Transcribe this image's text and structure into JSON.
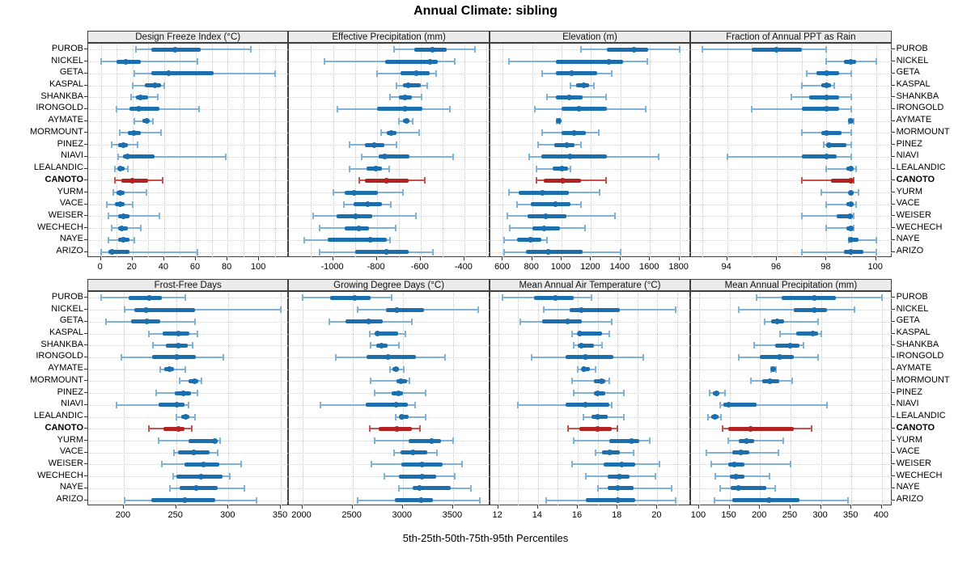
{
  "title": "Annual Climate: sibling",
  "caption": "5th-25th-50th-75th-95th Percentiles",
  "colors": {
    "series": "#1B6FAE",
    "series_light": "#7FB2D6",
    "highlight": "#B22222",
    "highlight_light": "#C9524B",
    "grid": "#c9c9c9",
    "strip_bg": "#ebebeb",
    "border": "#3f3f3f"
  },
  "highlight_site": "CANOTO",
  "sites": [
    "PUROB",
    "NICKEL",
    "GETA",
    "KASPAL",
    "SHANKBA",
    "IRONGOLD",
    "AYMATE",
    "MORMOUNT",
    "PINEZ",
    "NIAVI",
    "LEALANDIC",
    "CANOTO",
    "YURM",
    "VACE",
    "WEISER",
    "WECHECH",
    "NAYE",
    "ARIZO"
  ],
  "percentile_levels": [
    5,
    25,
    50,
    75,
    95
  ],
  "chart_data": [
    {
      "type": "dotplot-percentiles",
      "title": "Design Freeze Index (°C)",
      "row": 0,
      "col": 0,
      "xlim": [
        -8,
        119
      ],
      "ticks": [
        0,
        20,
        40,
        60,
        80,
        100
      ],
      "grid": [
        0,
        10,
        20,
        30,
        40,
        50,
        60,
        70,
        80,
        90,
        100,
        110
      ],
      "values": [
        [
          22,
          32,
          47,
          63,
          95
        ],
        [
          0,
          10,
          16,
          25,
          61
        ],
        [
          21,
          32,
          43,
          71,
          110
        ],
        [
          20,
          28,
          34,
          38,
          40
        ],
        [
          19,
          22,
          25,
          30,
          36
        ],
        [
          10,
          18,
          24,
          37,
          62
        ],
        [
          21,
          26,
          29,
          31,
          33
        ],
        [
          12,
          17,
          21,
          25,
          38
        ],
        [
          7,
          11,
          14,
          17,
          23
        ],
        [
          11,
          14,
          17,
          34,
          79
        ],
        [
          9,
          11,
          12,
          15,
          17
        ],
        [
          9,
          13,
          20,
          30,
          39
        ],
        [
          8,
          10,
          12,
          15,
          29
        ],
        [
          4,
          9,
          12,
          15,
          20
        ],
        [
          5,
          11,
          14,
          18,
          37
        ],
        [
          7,
          11,
          13,
          17,
          25
        ],
        [
          5,
          11,
          14,
          18,
          21
        ],
        [
          0,
          5,
          7,
          18,
          61
        ]
      ]
    },
    {
      "type": "dotplot-percentiles",
      "title": "Effective Precipitation (mm)",
      "row": 0,
      "col": 1,
      "xlim": [
        -1200,
        -282
      ],
      "ticks": [
        -1000,
        -800,
        -600,
        -400
      ],
      "grid": [
        -1100,
        -1000,
        -900,
        -800,
        -700,
        -600,
        -500,
        -400,
        -300
      ],
      "values": [
        [
          -720,
          -630,
          -545,
          -480,
          -350
        ],
        [
          -1040,
          -760,
          -555,
          -520,
          -445
        ],
        [
          -800,
          -690,
          -620,
          -560,
          -530
        ],
        [
          -710,
          -680,
          -655,
          -600,
          -570
        ],
        [
          -740,
          -700,
          -670,
          -640,
          -595
        ],
        [
          -980,
          -800,
          -670,
          -590,
          -465
        ],
        [
          -700,
          -680,
          -665,
          -650,
          -635
        ],
        [
          -780,
          -755,
          -735,
          -710,
          -605
        ],
        [
          -925,
          -855,
          -810,
          -765,
          -710
        ],
        [
          -870,
          -790,
          -765,
          -650,
          -450
        ],
        [
          -925,
          -845,
          -805,
          -775,
          -745
        ],
        [
          -880,
          -855,
          -755,
          -655,
          -580
        ],
        [
          -1000,
          -945,
          -905,
          -795,
          -680
        ],
        [
          -950,
          -905,
          -840,
          -775,
          -735
        ],
        [
          -1090,
          -985,
          -895,
          -820,
          -620
        ],
        [
          -1060,
          -945,
          -880,
          -835,
          -715
        ],
        [
          -1130,
          -1025,
          -830,
          -755,
          -740
        ],
        [
          -1060,
          -900,
          -755,
          -655,
          -545
        ]
      ]
    },
    {
      "type": "dotplot-percentiles",
      "title": "Elevation (m)",
      "row": 0,
      "col": 2,
      "xlim": [
        515,
        1880
      ],
      "ticks": [
        600,
        800,
        1000,
        1200,
        1400,
        1600,
        1800
      ],
      "grid": [
        600,
        800,
        1000,
        1200,
        1400,
        1600,
        1800
      ],
      "values": [
        [
          1130,
          1310,
          1490,
          1590,
          1800
        ],
        [
          640,
          960,
          1320,
          1420,
          1580
        ],
        [
          870,
          960,
          1070,
          1240,
          1340
        ],
        [
          1060,
          1100,
          1150,
          1185,
          1220
        ],
        [
          900,
          960,
          1050,
          1140,
          1300
        ],
        [
          820,
          1000,
          1120,
          1310,
          1570
        ],
        [
          965,
          975,
          980,
          985,
          990
        ],
        [
          870,
          1000,
          1085,
          1165,
          1250
        ],
        [
          840,
          950,
          1035,
          1090,
          1130
        ],
        [
          780,
          860,
          1060,
          1310,
          1660
        ],
        [
          830,
          940,
          1000,
          1045,
          1060
        ],
        [
          830,
          880,
          1010,
          1130,
          1300
        ],
        [
          640,
          710,
          870,
          1050,
          1260
        ],
        [
          700,
          790,
          960,
          1060,
          1130
        ],
        [
          630,
          770,
          890,
          1030,
          1360
        ],
        [
          650,
          800,
          880,
          990,
          1160
        ],
        [
          610,
          700,
          790,
          860,
          900
        ],
        [
          610,
          760,
          910,
          1140,
          1400
        ]
      ]
    },
    {
      "type": "dotplot-percentiles",
      "title": "Fraction of Annual PPT as Rain",
      "row": 0,
      "col": 3,
      "xlim": [
        92.55,
        100.65
      ],
      "ticks": [
        94,
        96,
        98,
        100
      ],
      "grid": [
        93,
        94,
        95,
        96,
        97,
        98,
        99,
        100
      ],
      "values": [
        [
          93,
          95,
          96,
          97,
          98
        ],
        [
          98,
          98.7,
          99,
          99.2,
          100
        ],
        [
          97.2,
          97.6,
          98,
          98.5,
          99
        ],
        [
          97,
          97.8,
          98,
          98.2,
          98.3
        ],
        [
          96.6,
          97.3,
          98,
          98.5,
          99
        ],
        [
          95,
          97,
          98,
          98.5,
          99
        ],
        [
          98.9,
          98.95,
          99,
          99.05,
          99.1
        ],
        [
          97,
          97.8,
          98,
          98.6,
          99
        ],
        [
          97.9,
          98,
          98.1,
          98.8,
          99
        ],
        [
          94,
          97,
          98,
          98.4,
          99
        ],
        [
          98,
          98.8,
          99,
          99.1,
          99.2
        ],
        [
          97,
          98.2,
          99,
          99.05,
          99.1
        ],
        [
          97.8,
          98.9,
          99,
          99.1,
          99.3
        ],
        [
          98,
          98.8,
          99,
          99.1,
          99.2
        ],
        [
          97,
          98.4,
          98.95,
          99.05,
          99.1
        ],
        [
          98,
          98.8,
          99,
          99.05,
          99.1
        ],
        [
          98.9,
          98.95,
          99,
          99.3,
          100
        ],
        [
          97,
          98.7,
          99,
          99.5,
          100
        ]
      ]
    },
    {
      "type": "dotplot-percentiles",
      "title": "Frost-Free Days",
      "row": 1,
      "col": 0,
      "xlim": [
        166,
        358
      ],
      "ticks": [
        200,
        250,
        300,
        350
      ],
      "grid": [
        200,
        250,
        300,
        350
      ],
      "values": [
        [
          178,
          205,
          224,
          236,
          259
        ],
        [
          201,
          210,
          221,
          268,
          350
        ],
        [
          183,
          207,
          222,
          235,
          268
        ],
        [
          224,
          237,
          252,
          263,
          270
        ],
        [
          228,
          240,
          252,
          261,
          266
        ],
        [
          198,
          227,
          251,
          269,
          295
        ],
        [
          235,
          239,
          244,
          248,
          259
        ],
        [
          253,
          262,
          268,
          271,
          274
        ],
        [
          231,
          249,
          257,
          264,
          270
        ],
        [
          193,
          233,
          251,
          258,
          262
        ],
        [
          250,
          255,
          259,
          263,
          268
        ],
        [
          224,
          238,
          252,
          258,
          265
        ],
        [
          233,
          262,
          287,
          290,
          292
        ],
        [
          248,
          252,
          267,
          282,
          290
        ],
        [
          236,
          258,
          276,
          291,
          312
        ],
        [
          247,
          250,
          274,
          294,
          301
        ],
        [
          244,
          253,
          269,
          290,
          315
        ],
        [
          201,
          226,
          258,
          287,
          327
        ]
      ]
    },
    {
      "type": "dotplot-percentiles",
      "title": "Growing Degree Days (°C)",
      "row": 1,
      "col": 1,
      "xlim": [
        1870,
        3870
      ],
      "ticks": [
        2000,
        2500,
        3000,
        3500
      ],
      "grid": [
        2000,
        2500,
        3000,
        3500
      ],
      "values": [
        [
          2000,
          2280,
          2520,
          2680,
          2890
        ],
        [
          2550,
          2830,
          2940,
          3210,
          3750
        ],
        [
          2270,
          2430,
          2660,
          2800,
          3090
        ],
        [
          2670,
          2720,
          2750,
          2950,
          3030
        ],
        [
          2680,
          2740,
          2790,
          2850,
          2960
        ],
        [
          2330,
          2640,
          2850,
          3130,
          3420
        ],
        [
          2870,
          2900,
          2930,
          2960,
          3010
        ],
        [
          2680,
          2940,
          2980,
          3040,
          3070
        ],
        [
          2720,
          2890,
          2960,
          3000,
          3230
        ],
        [
          2180,
          2630,
          2930,
          3050,
          3120
        ],
        [
          2930,
          2960,
          2990,
          3060,
          3230
        ],
        [
          2670,
          2760,
          2940,
          3090,
          3170
        ],
        [
          2720,
          3060,
          3290,
          3380,
          3500
        ],
        [
          2910,
          2980,
          3100,
          3240,
          3340
        ],
        [
          2690,
          2990,
          3190,
          3400,
          3590
        ],
        [
          2820,
          2960,
          3190,
          3330,
          3520
        ],
        [
          2960,
          3100,
          3170,
          3480,
          3680
        ],
        [
          2550,
          2920,
          3180,
          3300,
          3770
        ]
      ]
    },
    {
      "type": "dotplot-percentiles",
      "title": "Mean Annual Air Temperature (°C)",
      "row": 1,
      "col": 2,
      "xlim": [
        11.6,
        21.7
      ],
      "ticks": [
        12,
        14,
        16,
        18,
        20
      ],
      "grid": [
        12,
        13,
        14,
        15,
        16,
        17,
        18,
        19,
        20,
        21
      ],
      "values": [
        [
          12.2,
          13.8,
          14.9,
          15.8,
          16.7
        ],
        [
          14.3,
          15.6,
          16.2,
          18.1,
          20.9
        ],
        [
          13.1,
          14.2,
          15.5,
          16.2,
          17.7
        ],
        [
          15.7,
          16.0,
          16.1,
          17.2,
          17.6
        ],
        [
          15.8,
          16.0,
          16.2,
          16.8,
          17.2
        ],
        [
          13.7,
          15.4,
          16.4,
          17.8,
          19.3
        ],
        [
          16.0,
          16.2,
          16.3,
          16.6,
          16.9
        ],
        [
          15.7,
          16.8,
          17.2,
          17.4,
          17.6
        ],
        [
          15.8,
          16.8,
          17.0,
          17.4,
          18.3
        ],
        [
          13.0,
          15.4,
          16.4,
          17.6,
          17.7
        ],
        [
          16.3,
          16.7,
          17.0,
          17.5,
          18.3
        ],
        [
          15.5,
          16.1,
          17.0,
          17.7,
          18.0
        ],
        [
          15.8,
          17.6,
          18.7,
          19.1,
          19.6
        ],
        [
          16.9,
          17.2,
          17.6,
          18.1,
          18.8
        ],
        [
          15.7,
          17.3,
          18.2,
          18.9,
          20.1
        ],
        [
          16.4,
          17.5,
          18.1,
          18.6,
          19.9
        ],
        [
          17.0,
          17.5,
          18.0,
          18.8,
          20.7
        ],
        [
          14.4,
          16.4,
          18.0,
          18.9,
          20.9
        ]
      ]
    },
    {
      "type": "dotplot-percentiles",
      "title": "Mean Annual Precipitation (mm)",
      "row": 1,
      "col": 3,
      "xlim": [
        87,
        417
      ],
      "ticks": [
        100,
        150,
        200,
        250,
        300,
        350,
        400
      ],
      "grid": [
        100,
        150,
        200,
        250,
        300,
        350,
        400
      ],
      "values": [
        [
          195,
          235,
          290,
          325,
          400
        ],
        [
          165,
          255,
          290,
          310,
          355
        ],
        [
          208,
          218,
          228,
          240,
          295
        ],
        [
          233,
          260,
          287,
          295,
          300
        ],
        [
          190,
          225,
          250,
          265,
          272
        ],
        [
          165,
          200,
          232,
          255,
          295
        ],
        [
          218,
          220,
          222,
          224,
          226
        ],
        [
          185,
          203,
          216,
          232,
          253
        ],
        [
          117,
          122,
          128,
          133,
          142
        ],
        [
          135,
          140,
          148,
          195,
          310
        ],
        [
          115,
          120,
          126,
          132,
          136
        ],
        [
          138,
          148,
          185,
          255,
          285
        ],
        [
          148,
          165,
          178,
          190,
          238
        ],
        [
          112,
          155,
          168,
          183,
          230
        ],
        [
          120,
          148,
          158,
          175,
          250
        ],
        [
          127,
          150,
          160,
          175,
          215
        ],
        [
          135,
          152,
          165,
          210,
          225
        ],
        [
          125,
          155,
          215,
          265,
          345
        ]
      ]
    }
  ]
}
